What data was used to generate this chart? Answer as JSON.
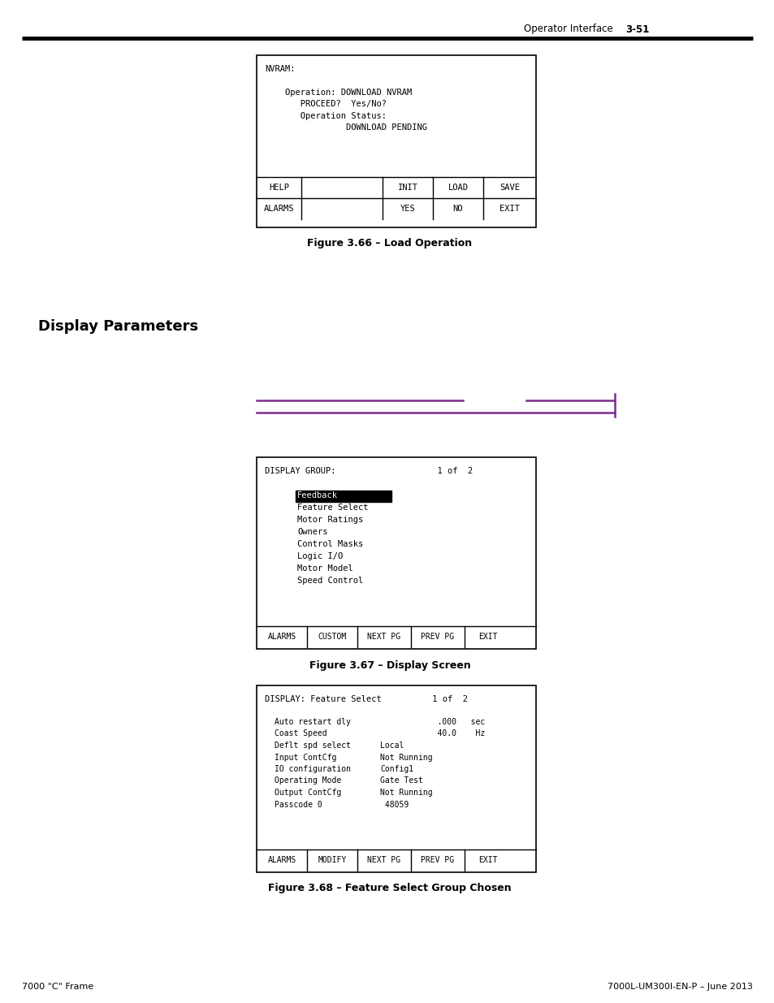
{
  "page_header_right": "Operator Interface",
  "page_header_number": "3-51",
  "footer_left": "7000 \"C\" Frame",
  "footer_right": "7000L-UM300I-EN-P – June 2013",
  "section_title": "Display Parameters",
  "fig1_caption": "Figure 3.66 – Load Operation",
  "fig1_lines": [
    "NVRAM:",
    "",
    "    Operation: DOWNLOAD NVRAM",
    "       PROCEED?  Yes/No?",
    "       Operation Status:",
    "                DOWNLOAD PENDING"
  ],
  "fig1_btn_row1": [
    "HELP",
    "",
    "INIT",
    "LOAD",
    "SAVE"
  ],
  "fig1_btn_row2": [
    "ALARMS",
    "",
    "YES",
    "NO",
    "EXIT"
  ],
  "fig2_caption": "Figure 3.67 – Display Screen",
  "fig2_header": "DISPLAY GROUP:                    1 of  2",
  "fig2_items": [
    "Feedback",
    "Feature Select",
    "Motor Ratings",
    "Owners",
    "Control Masks",
    "Logic I/O",
    "Motor Model",
    "Speed Control"
  ],
  "fig2_buttons": [
    "ALARMS",
    "CUSTOM",
    "NEXT PG",
    "PREV PG",
    "EXIT"
  ],
  "fig3_caption": "Figure 3.68 – Feature Select Group Chosen",
  "fig3_header": "DISPLAY: Feature Select          1 of  2",
  "fig3_rows": [
    [
      "Auto restart dly",
      "            .000   sec"
    ],
    [
      "Coast Speed",
      "            40.0    Hz"
    ],
    [
      "Deflt spd select",
      "Local"
    ],
    [
      "Input ContCfg",
      "Not Running"
    ],
    [
      "IO configuration",
      "Config1"
    ],
    [
      "Operating Mode",
      "Gate Test"
    ],
    [
      "Output ContCfg",
      "Not Running"
    ],
    [
      "Passcode 0",
      " 48059"
    ]
  ],
  "fig3_buttons": [
    "ALARMS",
    "MODIFY",
    "NEXT PG",
    "PREV PG",
    "EXIT"
  ],
  "purple": "#7B2D8B",
  "bg": "#ffffff"
}
